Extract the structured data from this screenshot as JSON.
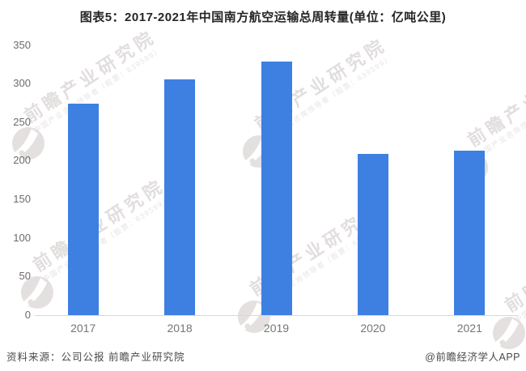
{
  "title": "图表5：2017-2021年中国南方航空运输总周转量(单位：亿吨公里)",
  "chart_data": {
    "type": "bar",
    "categories": [
      "2017",
      "2018",
      "2019",
      "2020",
      "2021"
    ],
    "values": [
      274,
      305,
      328,
      209,
      213
    ],
    "title": "图表5：2017-2021年中国南方航空运输总周转量(单位：亿吨公里)",
    "xlabel": "",
    "ylabel": "",
    "unit": "亿吨公里",
    "ylim": [
      0,
      350
    ],
    "ytick_step": 50,
    "yticks": [
      0,
      50,
      100,
      150,
      200,
      250,
      300,
      350
    ],
    "grid": false,
    "legend": null,
    "bar_color": "#3d80e1"
  },
  "watermark": {
    "brand_large": "前瞻产业研究院",
    "brand_small": "中国产业咨询领导者（股票：839599）"
  },
  "footer": {
    "source": "资料来源：公司公报 前瞻产业研究院",
    "credit": "@前瞻经济学人APP"
  }
}
